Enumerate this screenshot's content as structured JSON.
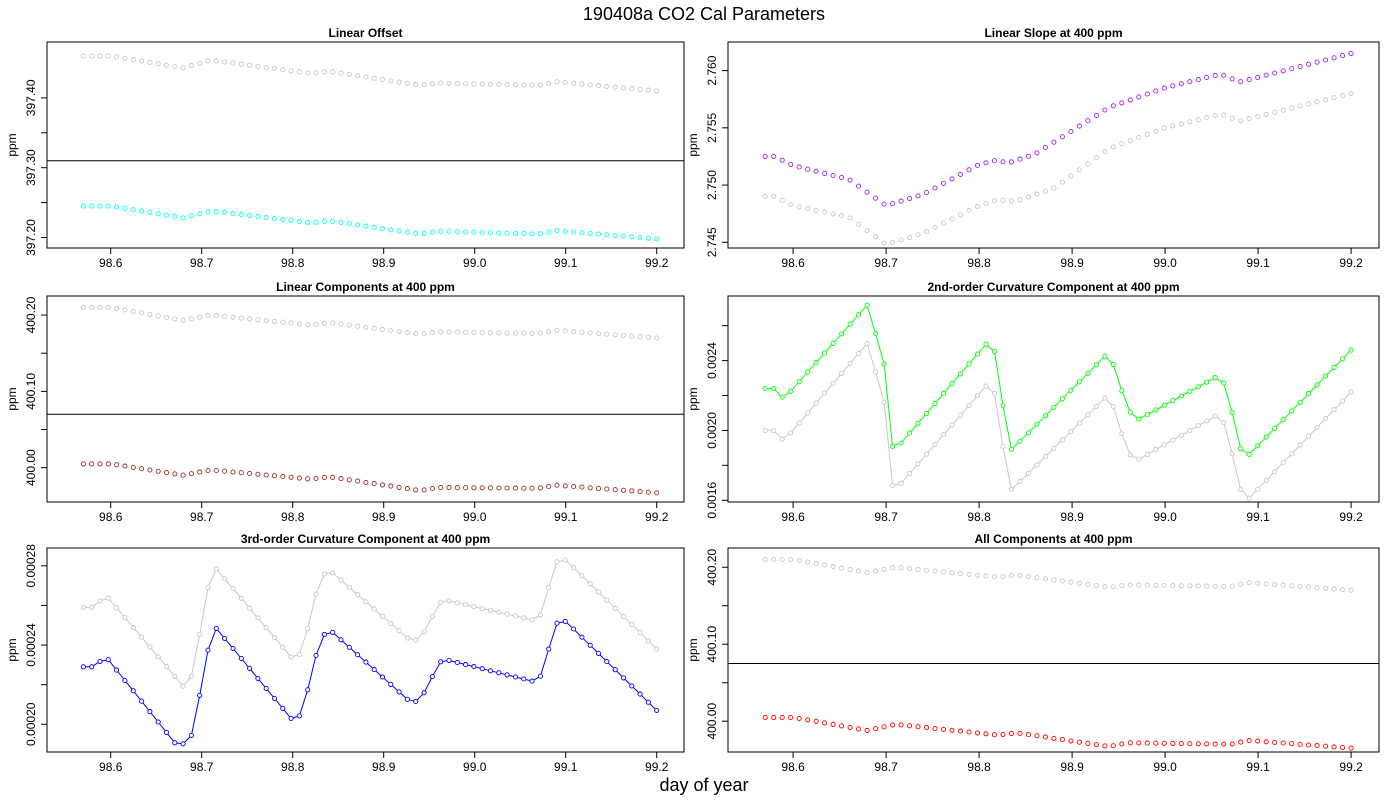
{
  "figure": {
    "title": "190408a   CO2 Cal Parameters",
    "xlabel": "day of year"
  },
  "chart_data": [
    {
      "type": "scatter",
      "title": "Linear Offset",
      "ylabel": "ppm",
      "xlim": [
        98.53,
        99.23
      ],
      "ylim": [
        397.185,
        397.48
      ],
      "x_ticks": [
        98.6,
        98.7,
        98.8,
        98.9,
        99.0,
        99.1,
        99.2
      ],
      "x_tick_labels": [
        "98.6",
        "98.7",
        "98.8",
        "98.9",
        "99.0",
        "99.1",
        "99.2"
      ],
      "y_ticks": [
        397.2,
        397.3,
        397.4
      ],
      "y_tick_labels": [
        "397.20",
        "397.30",
        "397.40"
      ],
      "y_minor_ticks": [
        397.25,
        397.35
      ],
      "hline": 397.31,
      "x_start": 98.57,
      "x_end": 99.2,
      "series": [
        {
          "color": "#c8c8c8",
          "connected": false,
          "knots": [
            [
              98.57,
              397.46
            ],
            [
              98.6,
              397.46
            ],
            [
              98.68,
              397.443
            ],
            [
              98.71,
              397.454
            ],
            [
              98.82,
              397.435
            ],
            [
              98.84,
              397.438
            ],
            [
              98.94,
              397.418
            ],
            [
              98.96,
              397.421
            ],
            [
              99.07,
              397.418
            ],
            [
              99.09,
              397.423
            ],
            [
              99.2,
              397.41
            ]
          ]
        },
        {
          "color": "#00ffff",
          "connected": false,
          "knots": [
            [
              98.57,
              397.245
            ],
            [
              98.6,
              397.245
            ],
            [
              98.68,
              397.228
            ],
            [
              98.71,
              397.238
            ],
            [
              98.82,
              397.221
            ],
            [
              98.84,
              397.224
            ],
            [
              98.94,
              397.205
            ],
            [
              98.96,
              397.209
            ],
            [
              99.07,
              397.205
            ],
            [
              99.09,
              397.21
            ],
            [
              99.2,
              397.198
            ]
          ]
        }
      ]
    },
    {
      "type": "scatter",
      "title": "Linear Slope at 400 ppm",
      "ylabel": "ppm",
      "xlim": [
        98.53,
        99.23
      ],
      "ylim": [
        2.7445,
        2.7625
      ],
      "x_ticks": [
        98.6,
        98.7,
        98.8,
        98.9,
        99.0,
        99.1,
        99.2
      ],
      "x_tick_labels": [
        "98.6",
        "98.7",
        "98.8",
        "98.9",
        "99.0",
        "99.1",
        "99.2"
      ],
      "y_ticks": [
        2.745,
        2.75,
        2.755,
        2.76
      ],
      "y_tick_labels": [
        "2.745",
        "2.750",
        "2.755",
        "2.760"
      ],
      "y_minor_ticks": [],
      "hline": null,
      "x_start": 98.57,
      "x_end": 99.2,
      "series": [
        {
          "color": "#c8c8c8",
          "connected": false,
          "knots": [
            [
              98.57,
              2.749
            ],
            [
              98.58,
              2.749
            ],
            [
              98.6,
              2.7482
            ],
            [
              98.66,
              2.7472
            ],
            [
              98.7,
              2.7448
            ],
            [
              98.74,
              2.7458
            ],
            [
              98.8,
              2.7482
            ],
            [
              98.82,
              2.7487
            ],
            [
              98.84,
              2.7486
            ],
            [
              98.88,
              2.7497
            ],
            [
              98.94,
              2.7532
            ],
            [
              99.0,
              2.755
            ],
            [
              99.06,
              2.7562
            ],
            [
              99.08,
              2.7556
            ],
            [
              99.2,
              2.758
            ]
          ]
        },
        {
          "color": "#a020f0",
          "connected": false,
          "knots": [
            [
              98.57,
              2.7525
            ],
            [
              98.58,
              2.7525
            ],
            [
              98.6,
              2.7517
            ],
            [
              98.66,
              2.7505
            ],
            [
              98.7,
              2.7482
            ],
            [
              98.74,
              2.7492
            ],
            [
              98.8,
              2.7518
            ],
            [
              98.82,
              2.7522
            ],
            [
              98.83,
              2.7519
            ],
            [
              98.86,
              2.7527
            ],
            [
              98.94,
              2.7568
            ],
            [
              99.0,
              2.7585
            ],
            [
              99.06,
              2.7597
            ],
            [
              99.08,
              2.759
            ],
            [
              99.2,
              2.7615
            ]
          ]
        }
      ]
    },
    {
      "type": "scatter",
      "title": "Linear Components at 400 ppm",
      "ylabel": "ppm",
      "xlim": [
        98.53,
        99.23
      ],
      "ylim": [
        399.955,
        400.225
      ],
      "x_ticks": [
        98.6,
        98.7,
        98.8,
        98.9,
        99.0,
        99.1,
        99.2
      ],
      "x_tick_labels": [
        "98.6",
        "98.7",
        "98.8",
        "98.9",
        "99.0",
        "99.1",
        "99.2"
      ],
      "y_ticks": [
        400.0,
        400.1,
        400.2
      ],
      "y_tick_labels": [
        "400.00",
        "400.10",
        "400.20"
      ],
      "y_minor_ticks": [
        400.05,
        400.15
      ],
      "hline": 400.07,
      "x_start": 98.57,
      "x_end": 99.2,
      "series": [
        {
          "color": "#c8c8c8",
          "connected": false,
          "knots": [
            [
              98.57,
              400.21
            ],
            [
              98.6,
              400.21
            ],
            [
              98.68,
              400.193
            ],
            [
              98.71,
              400.2
            ],
            [
              98.82,
              400.187
            ],
            [
              98.84,
              400.19
            ],
            [
              98.94,
              400.175
            ],
            [
              98.96,
              400.178
            ],
            [
              99.07,
              400.176
            ],
            [
              99.09,
              400.18
            ],
            [
              99.2,
              400.17
            ]
          ]
        },
        {
          "color": "#a52a2a",
          "connected": false,
          "knots": [
            [
              98.57,
              400.005
            ],
            [
              98.6,
              400.005
            ],
            [
              98.68,
              399.99
            ],
            [
              98.71,
              399.997
            ],
            [
              98.82,
              399.985
            ],
            [
              98.84,
              399.988
            ],
            [
              98.94,
              399.97
            ],
            [
              98.96,
              399.974
            ],
            [
              99.07,
              399.973
            ],
            [
              99.09,
              399.977
            ],
            [
              99.2,
              399.967
            ]
          ]
        }
      ]
    },
    {
      "type": "line",
      "title": "2nd-order Curvature Component at 400 ppm",
      "ylabel": "ppm",
      "xlim": [
        98.53,
        99.23
      ],
      "ylim": [
        0.00159,
        0.00277
      ],
      "x_ticks": [
        98.6,
        98.7,
        98.8,
        98.9,
        99.0,
        99.1,
        99.2
      ],
      "x_tick_labels": [
        "98.6",
        "98.7",
        "98.8",
        "98.9",
        "99.0",
        "99.1",
        "99.2"
      ],
      "y_ticks": [
        0.0016,
        0.002,
        0.0024
      ],
      "y_tick_labels": [
        "0.0016",
        "0.0020",
        "0.0024"
      ],
      "y_minor_ticks": [
        0.0018,
        0.0022,
        0.0026
      ],
      "hline": null,
      "x_start": 98.57,
      "x_end": 99.2,
      "series": [
        {
          "color": "#c8c8c8",
          "connected": true,
          "knots": [
            [
              98.57,
              0.002
            ],
            [
              98.58,
              0.002
            ],
            [
              98.59,
              0.00194
            ],
            [
              98.68,
              0.0025
            ],
            [
              98.7,
              0.00212
            ],
            [
              98.705,
              0.0017
            ],
            [
              98.71,
              0.00166
            ],
            [
              98.81,
              0.00227
            ],
            [
              98.82,
              0.00218
            ],
            [
              98.83,
              0.0017
            ],
            [
              98.835,
              0.00166
            ],
            [
              98.94,
              0.00221
            ],
            [
              98.96,
              0.00187
            ],
            [
              98.97,
              0.00183
            ],
            [
              99.06,
              0.0021
            ],
            [
              99.07,
              0.00192
            ],
            [
              99.08,
              0.00167
            ],
            [
              99.09,
              0.00161
            ],
            [
              99.2,
              0.00222
            ]
          ]
        },
        {
          "color": "#00ff00",
          "connected": true,
          "knots": [
            [
              98.57,
              0.00224
            ],
            [
              98.58,
              0.00224
            ],
            [
              98.59,
              0.00218
            ],
            [
              98.68,
              0.00272
            ],
            [
              98.7,
              0.00234
            ],
            [
              98.705,
              0.00192
            ],
            [
              98.71,
              0.00189
            ],
            [
              98.81,
              0.00251
            ],
            [
              98.82,
              0.00242
            ],
            [
              98.83,
              0.00193
            ],
            [
              98.835,
              0.00189
            ],
            [
              98.94,
              0.00245
            ],
            [
              98.96,
              0.00212
            ],
            [
              98.97,
              0.00206
            ],
            [
              99.06,
              0.00232
            ],
            [
              99.07,
              0.00216
            ],
            [
              99.08,
              0.0019
            ],
            [
              99.09,
              0.00186
            ],
            [
              99.2,
              0.00246
            ]
          ]
        }
      ]
    },
    {
      "type": "line",
      "title": "3rd-order Curvature Component at 400 ppm",
      "ylabel": "ppm",
      "xlim": [
        98.53,
        99.23
      ],
      "ylim": [
        0.000186,
        0.000289
      ],
      "x_ticks": [
        98.6,
        98.7,
        98.8,
        98.9,
        99.0,
        99.1,
        99.2
      ],
      "x_tick_labels": [
        "98.6",
        "98.7",
        "98.8",
        "98.9",
        "99.0",
        "99.1",
        "99.2"
      ],
      "y_ticks": [
        0.0002,
        0.00024,
        0.00028
      ],
      "y_tick_labels": [
        "0.00020",
        "0.00024",
        "0.00028"
      ],
      "y_minor_ticks": [
        0.00022,
        0.00026
      ],
      "hline": null,
      "x_start": 98.57,
      "x_end": 99.2,
      "series": [
        {
          "color": "#c8c8c8",
          "connected": true,
          "knots": [
            [
              98.57,
              0.000259
            ],
            [
              98.58,
              0.000259
            ],
            [
              98.595,
              0.000265
            ],
            [
              98.68,
              0.000219
            ],
            [
              98.69,
              0.000225
            ],
            [
              98.71,
              0.000277
            ],
            [
              98.715,
              0.000279
            ],
            [
              98.8,
              0.000233
            ],
            [
              98.81,
              0.000236
            ],
            [
              98.83,
              0.000274
            ],
            [
              98.84,
              0.000278
            ],
            [
              98.93,
              0.000242
            ],
            [
              98.94,
              0.000243
            ],
            [
              98.96,
              0.00026
            ],
            [
              98.965,
              0.000263
            ],
            [
              99.07,
              0.000252
            ],
            [
              99.09,
              0.000282
            ],
            [
              99.1,
              0.000283
            ],
            [
              99.2,
              0.000238
            ]
          ]
        },
        {
          "color": "#0000ff",
          "connected": true,
          "knots": [
            [
              98.57,
              0.000229
            ],
            [
              98.58,
              0.000229
            ],
            [
              98.595,
              0.000234
            ],
            [
              98.675,
              0.000188
            ],
            [
              98.69,
              0.000195
            ],
            [
              98.71,
              0.000245
            ],
            [
              98.715,
              0.000249
            ],
            [
              98.8,
              0.000202
            ],
            [
              98.81,
              0.000205
            ],
            [
              98.83,
              0.000243
            ],
            [
              98.84,
              0.000248
            ],
            [
              98.93,
              0.000211
            ],
            [
              98.94,
              0.000212
            ],
            [
              98.96,
              0.00023
            ],
            [
              98.965,
              0.000233
            ],
            [
              99.07,
              0.000221
            ],
            [
              99.09,
              0.000251
            ],
            [
              99.1,
              0.000252
            ],
            [
              99.2,
              0.000207
            ]
          ]
        }
      ]
    },
    {
      "type": "scatter",
      "title": "All Components at 400 ppm",
      "ylabel": "ppm",
      "xlim": [
        98.53,
        99.23
      ],
      "ylim": [
        399.96,
        400.225
      ],
      "x_ticks": [
        98.6,
        98.7,
        98.8,
        98.9,
        99.0,
        99.1,
        99.2
      ],
      "x_tick_labels": [
        "98.6",
        "98.7",
        "98.8",
        "98.9",
        "99.0",
        "99.1",
        "99.2"
      ],
      "y_ticks": [
        400.0,
        400.1,
        400.2
      ],
      "y_tick_labels": [
        "400.00",
        "400.10",
        "400.20"
      ],
      "y_minor_ticks": [
        400.05,
        400.15
      ],
      "hline": 400.075,
      "x_start": 98.57,
      "x_end": 99.2,
      "series": [
        {
          "color": "#c8c8c8",
          "connected": false,
          "knots": [
            [
              98.57,
              400.21
            ],
            [
              98.6,
              400.21
            ],
            [
              98.68,
              400.193
            ],
            [
              98.71,
              400.2
            ],
            [
              98.82,
              400.187
            ],
            [
              98.84,
              400.19
            ],
            [
              98.94,
              400.174
            ],
            [
              98.96,
              400.177
            ],
            [
              99.07,
              400.175
            ],
            [
              99.09,
              400.18
            ],
            [
              99.2,
              400.17
            ]
          ]
        },
        {
          "color": "#ff0000",
          "connected": false,
          "knots": [
            [
              98.57,
              400.005
            ],
            [
              98.6,
              400.005
            ],
            [
              98.68,
              399.988
            ],
            [
              98.71,
              399.996
            ],
            [
              98.82,
              399.982
            ],
            [
              98.84,
              399.985
            ],
            [
              98.94,
              399.967
            ],
            [
              98.96,
              399.972
            ],
            [
              99.07,
              399.97
            ],
            [
              99.09,
              399.975
            ],
            [
              99.2,
              399.965
            ]
          ]
        }
      ]
    }
  ]
}
